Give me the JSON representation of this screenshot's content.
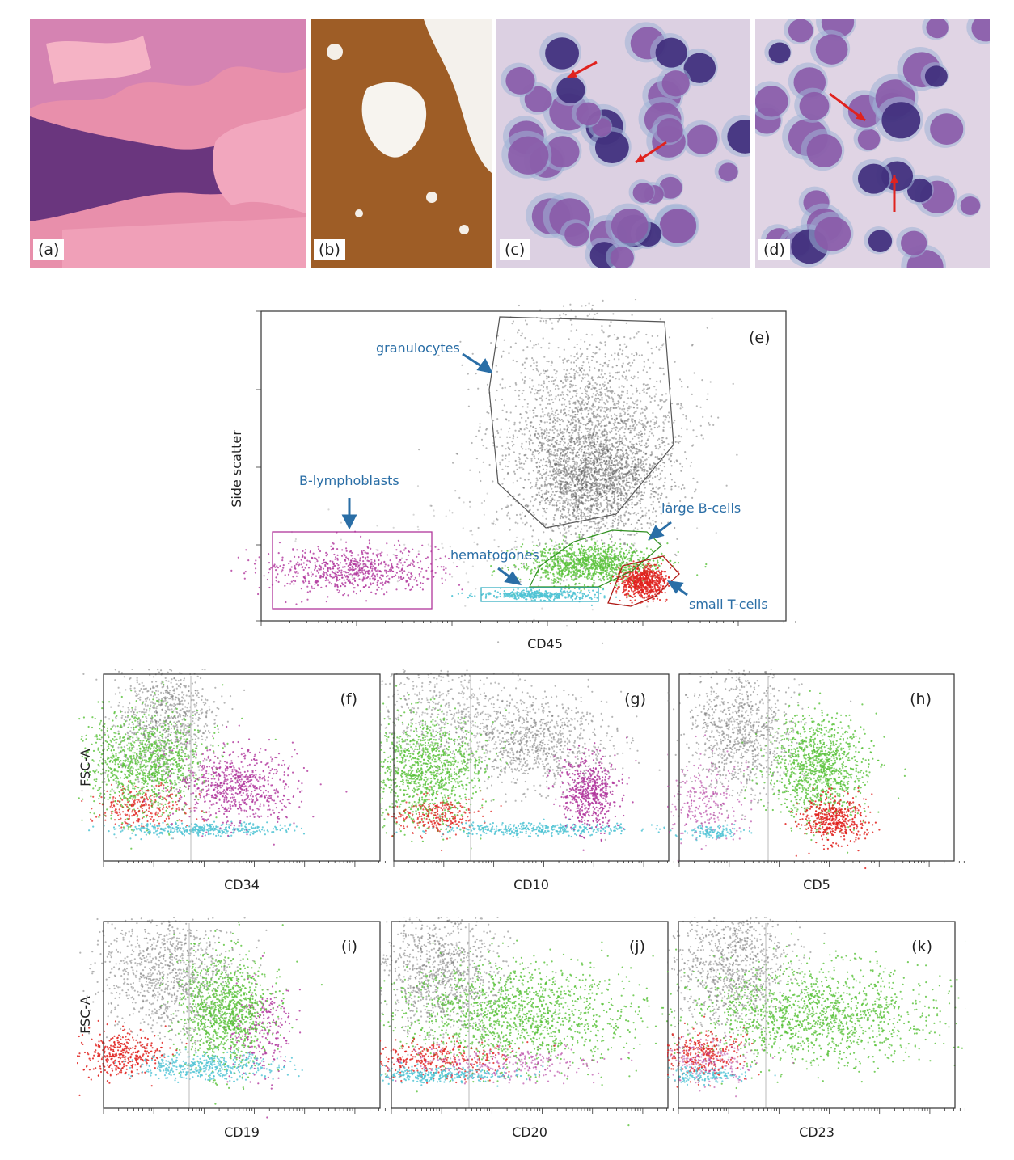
{
  "micrographs": [
    {
      "label": "(a)",
      "base": "#e68fa9"
    },
    {
      "label": "(b)",
      "base": "#a8642a"
    },
    {
      "label": "(c)",
      "base": "#d9cde0"
    },
    {
      "label": "(d)",
      "base": "#ddd1e2"
    }
  ],
  "colors": {
    "granulocytes": "#7a7a7a",
    "large_b_cells": "#59c23a",
    "small_t_cells": "#e0221e",
    "hematogones": "#4fc3d4",
    "b_lymphoblasts": "#b0369c",
    "gate_label": "#2a6ea6",
    "arrow_red": "#e0221e"
  },
  "chart_data": [
    {
      "type": "scatter",
      "panel": "(e)",
      "xlabel": "CD45",
      "ylabel": "Side scatter",
      "populations": [
        {
          "name": "granulocytes"
        },
        {
          "name": "B-lymphoblasts"
        },
        {
          "name": "large B-cells"
        },
        {
          "name": "hematogones"
        },
        {
          "name": "small T-cells"
        }
      ]
    },
    {
      "type": "scatter",
      "panel": "(f)",
      "xlabel": "CD34",
      "ylabel": "FSC-A"
    },
    {
      "type": "scatter",
      "panel": "(g)",
      "xlabel": "CD10",
      "ylabel": ""
    },
    {
      "type": "scatter",
      "panel": "(h)",
      "xlabel": "CD5",
      "ylabel": ""
    },
    {
      "type": "scatter",
      "panel": "(i)",
      "xlabel": "CD19",
      "ylabel": "FSC-A"
    },
    {
      "type": "scatter",
      "panel": "(j)",
      "xlabel": "CD20",
      "ylabel": ""
    },
    {
      "type": "scatter",
      "panel": "(k)",
      "xlabel": "CD23",
      "ylabel": ""
    }
  ]
}
